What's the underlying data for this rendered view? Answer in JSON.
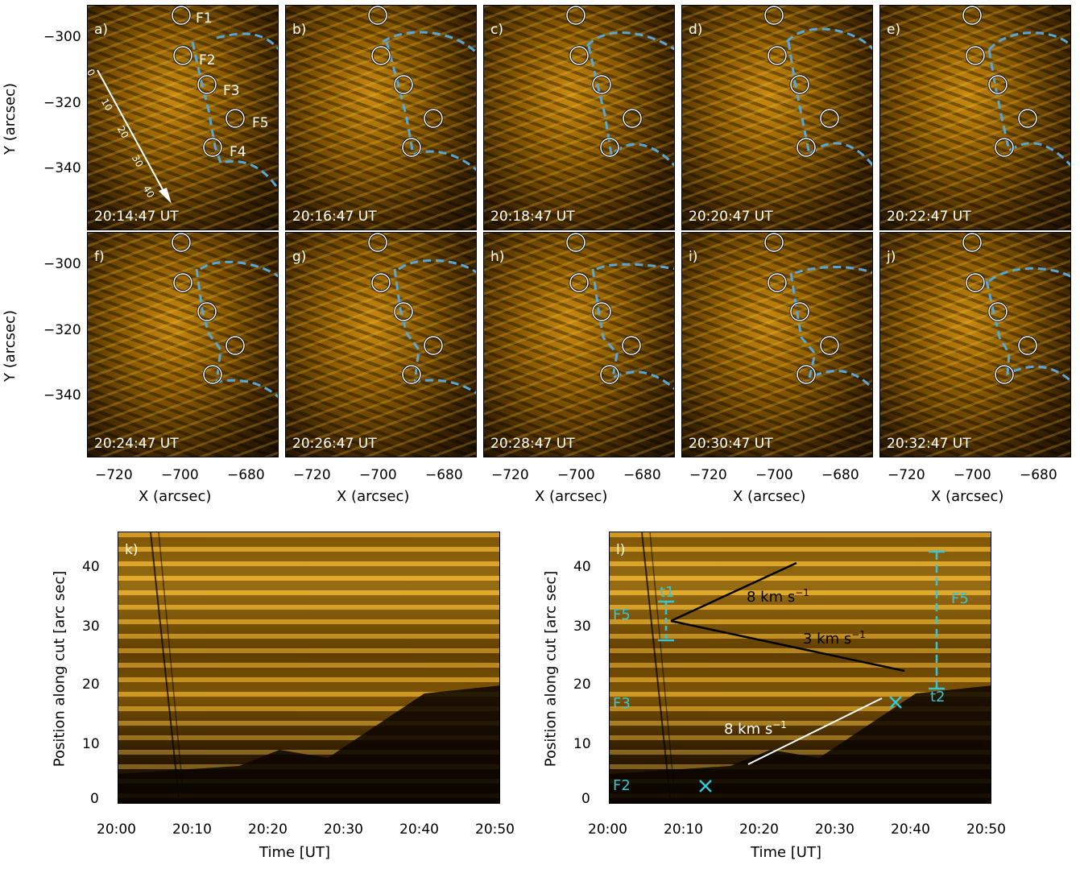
{
  "panels": [
    {
      "label": "a)",
      "time": "20:14:47 UT"
    },
    {
      "label": "b)",
      "time": "20:16:47 UT"
    },
    {
      "label": "c)",
      "time": "20:18:47 UT"
    },
    {
      "label": "d)",
      "time": "20:20:47 UT"
    },
    {
      "label": "e)",
      "time": "20:22:47 UT"
    },
    {
      "label": "f)",
      "time": "20:24:47 UT"
    },
    {
      "label": "g)",
      "time": "20:26:47 UT"
    },
    {
      "label": "h)",
      "time": "20:28:47 UT"
    },
    {
      "label": "i)",
      "time": "20:30:47 UT"
    },
    {
      "label": "j)",
      "time": "20:32:47 UT"
    }
  ],
  "feature_labels": {
    "f1": "F1",
    "f2": "F2",
    "f3": "F3",
    "f4": "F4",
    "f5": "F5"
  },
  "cut_ticks": [
    "0",
    "10",
    "20",
    "30",
    "40"
  ],
  "image_axes": {
    "ylabel": "Y (arcsec)",
    "xlabel": "X (arcsec)",
    "yticks": [
      "−300",
      "−320",
      "−340"
    ],
    "xticks": [
      "−720",
      "−700",
      "−680"
    ]
  },
  "timeslice": {
    "k_label": "k)",
    "l_label": "l)",
    "ylabel": "Position along cut [arc sec]",
    "xlabel": "Time [UT]",
    "yticks": [
      "0",
      "10",
      "20",
      "30",
      "40"
    ],
    "xticks": [
      "20:00",
      "20:10",
      "20:20",
      "20:30",
      "20:40",
      "20:50"
    ],
    "annotations": {
      "v1": "8 km s",
      "v2": "3 km s",
      "v3": "8 km s",
      "exp": "−1",
      "t1": "t1",
      "t2": "t2",
      "f5_left": "F5",
      "f5_right": "F5",
      "f3": "F3",
      "f2": "F2"
    }
  },
  "colors": {
    "boundary": "#5aa6d6",
    "cyan": "#36c6d6"
  }
}
